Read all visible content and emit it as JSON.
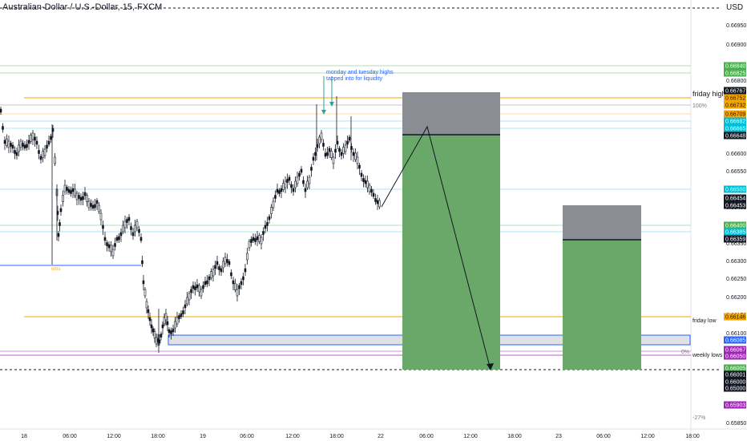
{
  "header": {
    "title": "Australian-Dollar / U.S.-Dollar, 15, FXCM",
    "currency": "USD"
  },
  "colors": {
    "up": "#26a69a",
    "down": "#ef5350",
    "candle": "#131722",
    "orange": "#f7a600",
    "blue": "#2962ff",
    "purple": "#9c27b0",
    "green_zone": "#6aa86a",
    "gray_zone": "#8a8d94"
  },
  "price_axis": {
    "ticks": [
      "0.66950",
      "0.66900",
      "0.66800",
      "0.66750",
      "0.66700",
      "0.66650",
      "0.66600",
      "0.66550",
      "0.66500",
      "0.66450",
      "0.66400",
      "0.66350",
      "0.66300",
      "0.66250",
      "0.66200",
      "0.66150",
      "0.66100",
      "0.66050",
      "0.66000",
      "0.65950",
      "0.65900",
      "0.65850"
    ],
    "tags": [
      {
        "text": "0.66840",
        "bg": "#4caf50",
        "fg": "#ffffff"
      },
      {
        "text": "0.66825",
        "bg": "#4caf50",
        "fg": "#ffffff"
      },
      {
        "text": "0.66767",
        "bg": "#131722",
        "fg": "#ffffff"
      },
      {
        "text": "0.66752",
        "bg": "#f7a600",
        "fg": "#131722"
      },
      {
        "text": "0.66732",
        "bg": "#f7a600",
        "fg": "#131722"
      },
      {
        "text": "0.66709",
        "bg": "#f7a600",
        "fg": "#131722"
      },
      {
        "text": "0.66682",
        "bg": "#00bcd4",
        "fg": "#ffffff"
      },
      {
        "text": "0.66665",
        "bg": "#00bcd4",
        "fg": "#ffffff"
      },
      {
        "text": "0.66648",
        "bg": "#131722",
        "fg": "#ffffff"
      },
      {
        "text": "0.66500",
        "bg": "#00bcd4",
        "fg": "#ffffff"
      },
      {
        "text": "0.66454",
        "bg": "#131722",
        "fg": "#ffffff"
      },
      {
        "text": "0.66453",
        "bg": "#131722",
        "fg": "#ffffff"
      },
      {
        "text": "0.66400",
        "bg": "#4caf50",
        "fg": "#ffffff"
      },
      {
        "text": "0.66385",
        "bg": "#00bcd4",
        "fg": "#ffffff"
      },
      {
        "text": "0.66359",
        "bg": "#131722",
        "fg": "#ffffff"
      },
      {
        "text": "0.66146",
        "bg": "#f7a600",
        "fg": "#131722"
      },
      {
        "text": "0.66085",
        "bg": "#2962ff",
        "fg": "#ffffff"
      },
      {
        "text": "0.66067",
        "bg": "#9c27b0",
        "fg": "#ffffff"
      },
      {
        "text": "0.66050",
        "bg": "#9c27b0",
        "fg": "#ffffff"
      },
      {
        "text": "0.66005",
        "bg": "#4caf50",
        "fg": "#ffffff"
      },
      {
        "text": "0.66001",
        "bg": "#131722",
        "fg": "#ffffff"
      },
      {
        "text": "0.66000",
        "bg": "#131722",
        "fg": "#ffffff"
      },
      {
        "text": "0.65000",
        "bg": "#131722",
        "fg": "#ffffff"
      },
      {
        "text": "0.65903",
        "bg": "#9c27b0",
        "fg": "#ffffff"
      }
    ]
  },
  "time_axis": {
    "labels": [
      "18",
      "06:00",
      "12:00",
      "18:00",
      "19",
      "06:00",
      "12:00",
      "18:00",
      "22",
      "06:00",
      "12:00",
      "18:00",
      "23",
      "06:00",
      "12:00",
      "18:00"
    ]
  },
  "annotations": {
    "liquidity_note_line1": "monday and tuesday highs",
    "liquidity_note_line2": "tapped into for liquidity",
    "friday_high": "friday high",
    "friday_low": "friday low",
    "weekly_lows": "weekly lows",
    "pct_100": "100%",
    "pct_0": "0%",
    "pct_neg27": "-27%",
    "small_label": "oms"
  }
}
